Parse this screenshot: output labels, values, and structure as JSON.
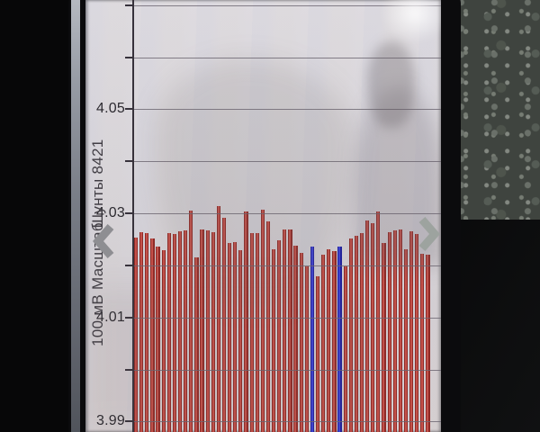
{
  "chart_data": {
    "type": "bar",
    "title": "",
    "left_rotated_labels": {
      "scale": "100 мВ Масштаб",
      "shunts": "Шунты 8421"
    },
    "yticks": [
      {
        "label": "4.05",
        "value": 4.05
      },
      {
        "label": "4.03",
        "value": 4.03
      },
      {
        "label": "4.01",
        "value": 4.01
      },
      {
        "label": "3.99",
        "value": 3.99
      }
    ],
    "gridline_values": [
      4.07,
      4.06,
      4.05,
      4.04,
      4.03,
      4.02,
      4.01,
      4.0,
      3.99
    ],
    "ylim": [
      3.988,
      4.071
    ],
    "grid": true,
    "legend": false,
    "values": [
      4.0254,
      4.0264,
      4.0262,
      4.0252,
      4.0237,
      4.0229,
      4.0262,
      4.0261,
      4.0265,
      4.0268,
      4.0306,
      4.0216,
      4.027,
      4.0268,
      4.0264,
      4.0314,
      4.0291,
      4.0243,
      4.0245,
      4.0229,
      4.0303,
      4.0263,
      4.0263,
      4.0308,
      4.0285,
      4.0231,
      4.0248,
      4.0269,
      4.0269,
      4.0238,
      4.0225,
      4.0199,
      4.0236,
      4.018,
      4.0221,
      4.0231,
      4.0227,
      4.0236,
      4.0199,
      4.0252,
      4.0257,
      4.0262,
      4.0287,
      4.0281,
      4.0303,
      4.0243,
      4.0264,
      4.0267,
      4.027,
      4.0231,
      4.0265,
      4.0261,
      4.0222,
      4.022
    ],
    "highlight_indices": [
      32,
      37
    ],
    "colors": {
      "bar_fill": "#c4514a",
      "bar_edge": "#8f2b27",
      "highlight_fill": "#3c41d6",
      "highlight_edge": "#21229e",
      "gridline": "#6b6570",
      "axis": "#37323b",
      "label_text": "#2c2a30",
      "chevron": "#96989a"
    }
  },
  "icons": {
    "prev": "chevron-left",
    "next": "chevron-right"
  }
}
